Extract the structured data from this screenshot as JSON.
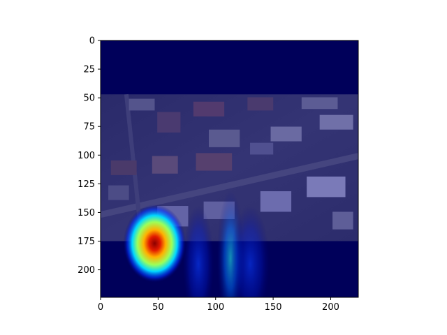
{
  "chart_data": {
    "type": "heatmap",
    "title": "",
    "xlabel": "",
    "ylabel": "",
    "xlim": [
      0,
      224
    ],
    "ylim": [
      224,
      0
    ],
    "x_ticks": [
      0,
      50,
      100,
      150,
      200
    ],
    "y_ticks": [
      0,
      25,
      50,
      75,
      100,
      125,
      150,
      175,
      200
    ],
    "x_tick_labels": [
      "0",
      "50",
      "100",
      "150",
      "200"
    ],
    "y_tick_labels": [
      "0",
      "25",
      "50",
      "75",
      "100",
      "125",
      "150",
      "175",
      "200"
    ],
    "image_region": {
      "x": [
        0,
        224
      ],
      "y": [
        47,
        175
      ],
      "content": "aerial photograph of residential houses"
    },
    "colormap": "jet",
    "colormap_stops": [
      "#00007f",
      "#0000ff",
      "#00ffff",
      "#ffff00",
      "#ff0000",
      "#7f0000"
    ],
    "hotspots": [
      {
        "x": 47,
        "y": 177,
        "sx": 16,
        "sy": 20,
        "intensity": 1.0
      },
      {
        "x": 113,
        "y": 190,
        "sx": 7,
        "sy": 35,
        "intensity": 0.38
      },
      {
        "x": 85,
        "y": 195,
        "sx": 8,
        "sy": 30,
        "intensity": 0.22
      },
      {
        "x": 130,
        "y": 195,
        "sx": 10,
        "sy": 30,
        "intensity": 0.15
      }
    ],
    "grid": false,
    "colors": {
      "background": "#00005a",
      "overlay": "#00007f"
    }
  }
}
